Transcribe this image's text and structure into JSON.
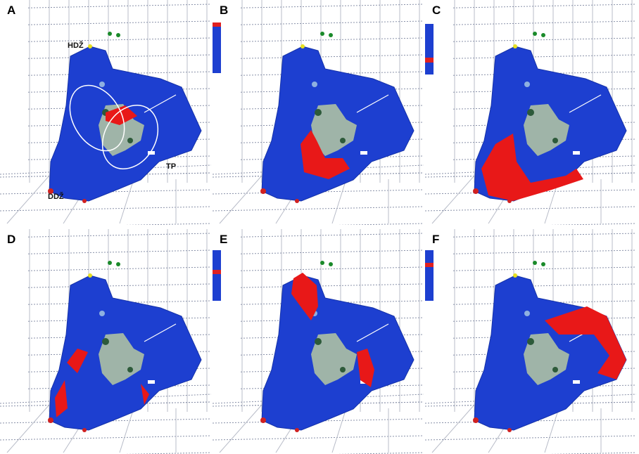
{
  "panels": [
    {
      "label": "A",
      "annotations": [
        "HDŽ",
        "DDŽ",
        "TP"
      ]
    },
    {
      "label": "B"
    },
    {
      "label": "C"
    },
    {
      "label": "D"
    },
    {
      "label": "E"
    },
    {
      "label": "F"
    }
  ]
}
